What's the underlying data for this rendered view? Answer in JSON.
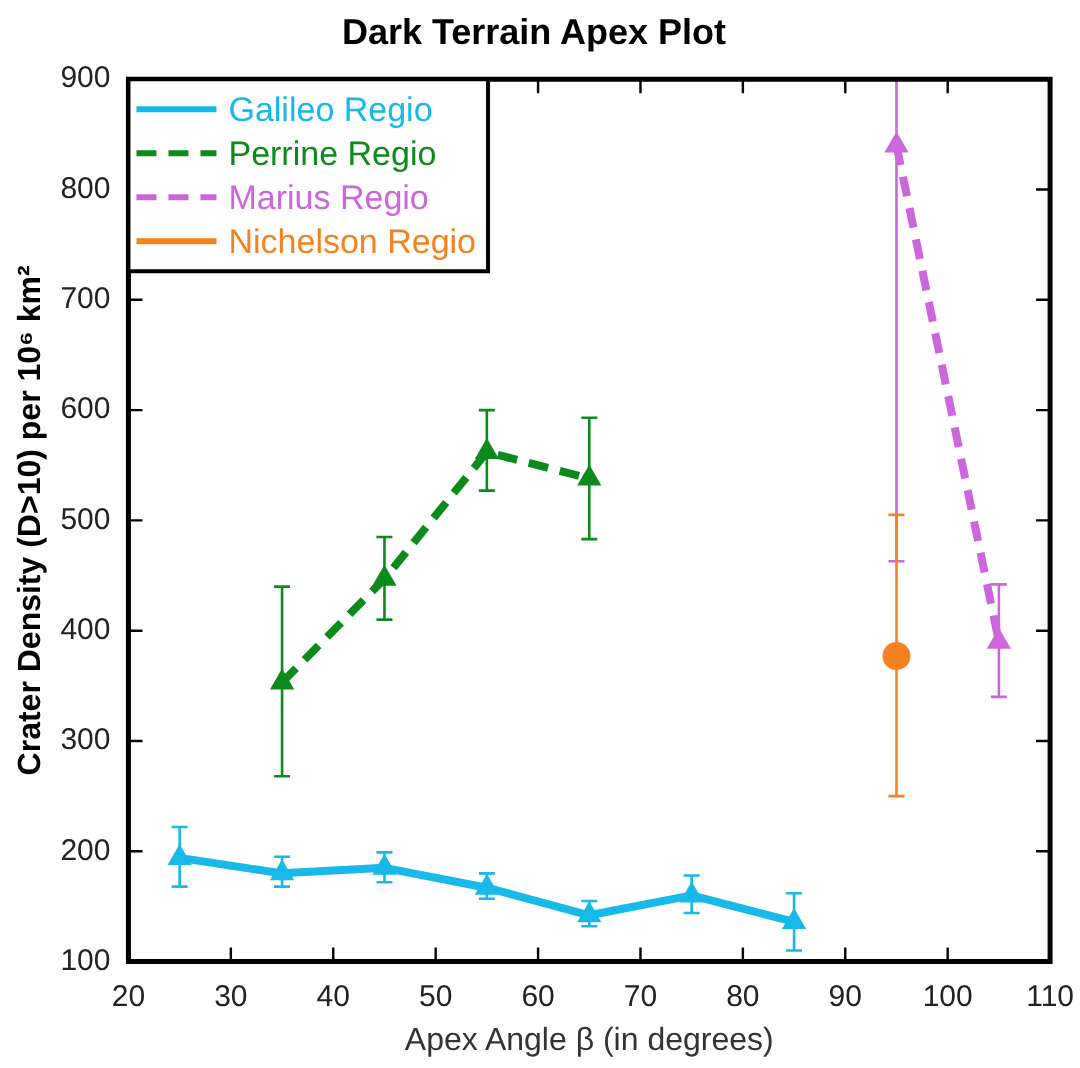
{
  "chart_data": {
    "type": "line",
    "title": "Dark Terrain Apex Plot",
    "xlabel": "Apex Angle β (in degrees)",
    "ylabel": "Crater Density (D>10) per 10⁶ km²",
    "xlim": [
      20,
      110
    ],
    "xticks": [
      20,
      30,
      40,
      50,
      60,
      70,
      80,
      90,
      100,
      110
    ],
    "ylim": [
      100,
      900
    ],
    "yticks": [
      100,
      200,
      300,
      400,
      500,
      600,
      700,
      800,
      900
    ],
    "legend": "top left",
    "grid": false,
    "series": [
      {
        "name": "Galileo Regio",
        "color": "#16b9e8",
        "marker": "triangle",
        "line_style": "solid",
        "x": [
          25,
          35,
          45,
          55,
          65,
          75,
          85
        ],
        "values": [
          194,
          180,
          185,
          167,
          142,
          160,
          136
        ],
        "errors": [
          [
            168,
            222
          ],
          [
            168,
            195
          ],
          [
            172,
            199
          ],
          [
            157,
            180
          ],
          [
            132,
            155
          ],
          [
            144,
            178
          ],
          [
            110,
            162
          ]
        ]
      },
      {
        "name": "Perrine Regio",
        "color": "#0d8a1c",
        "marker": "triangle",
        "line_style": "dashed",
        "x": [
          35,
          45,
          55,
          65
        ],
        "values": [
          353,
          447,
          562,
          538
        ],
        "errors": [
          [
            268,
            440
          ],
          [
            410,
            485
          ],
          [
            527,
            600
          ],
          [
            483,
            593
          ]
        ]
      },
      {
        "name": "Marius Regio",
        "color": "#cc66dd",
        "marker": "triangle",
        "line_style": "dashed",
        "x": [
          95,
          105
        ],
        "values": [
          840,
          390
        ],
        "errors": [
          [
            463,
            900
          ],
          [
            340,
            442
          ]
        ]
      },
      {
        "name": "Nichelson Regio",
        "color": "#f5821f",
        "marker": "circle",
        "line_style": "none",
        "x": [
          95
        ],
        "values": [
          377
        ],
        "errors": [
          [
            250,
            505
          ]
        ]
      }
    ]
  }
}
